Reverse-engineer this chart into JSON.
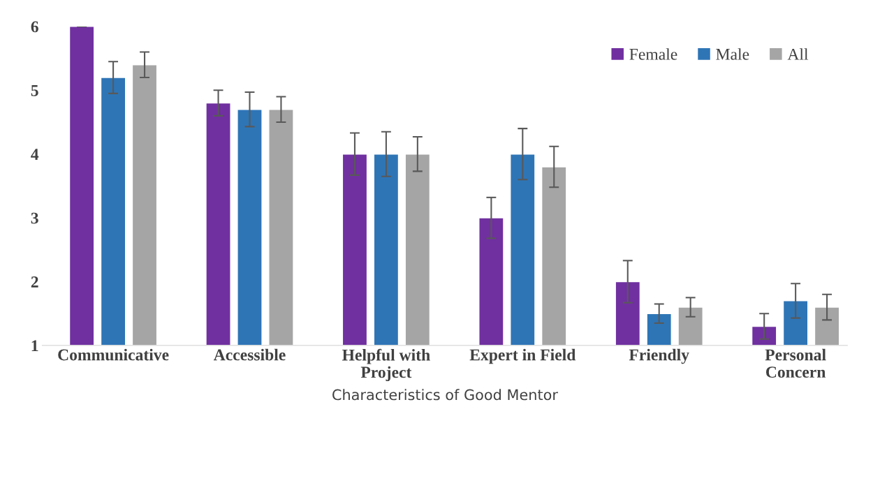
{
  "chart_data": {
    "type": "bar",
    "categories": [
      "Communicative",
      "Accessible",
      "Helpful with\nProject",
      "Expert in Field",
      "Friendly",
      "Personal\nConcern"
    ],
    "xlabel": "Characteristics of Good Mentor",
    "ylim": [
      1,
      6
    ],
    "yticks": [
      1,
      2,
      3,
      4,
      5,
      6
    ],
    "grid": false,
    "legend": "top right",
    "series": [
      {
        "name": "Female",
        "color": "#7030a0",
        "values": [
          6.0,
          4.8,
          4.0,
          3.0,
          2.0,
          1.3
        ],
        "errors": [
          0.0,
          0.2,
          0.33,
          0.32,
          0.33,
          0.2
        ]
      },
      {
        "name": "Male",
        "color": "#2e75b6",
        "values": [
          5.2,
          4.7,
          4.0,
          4.0,
          1.5,
          1.7
        ],
        "errors": [
          0.25,
          0.27,
          0.35,
          0.4,
          0.15,
          0.27
        ]
      },
      {
        "name": "All",
        "color": "#a5a5a5",
        "values": [
          5.4,
          4.7,
          4.0,
          3.8,
          1.6,
          1.6
        ],
        "errors": [
          0.2,
          0.2,
          0.27,
          0.32,
          0.15,
          0.2
        ]
      }
    ]
  }
}
